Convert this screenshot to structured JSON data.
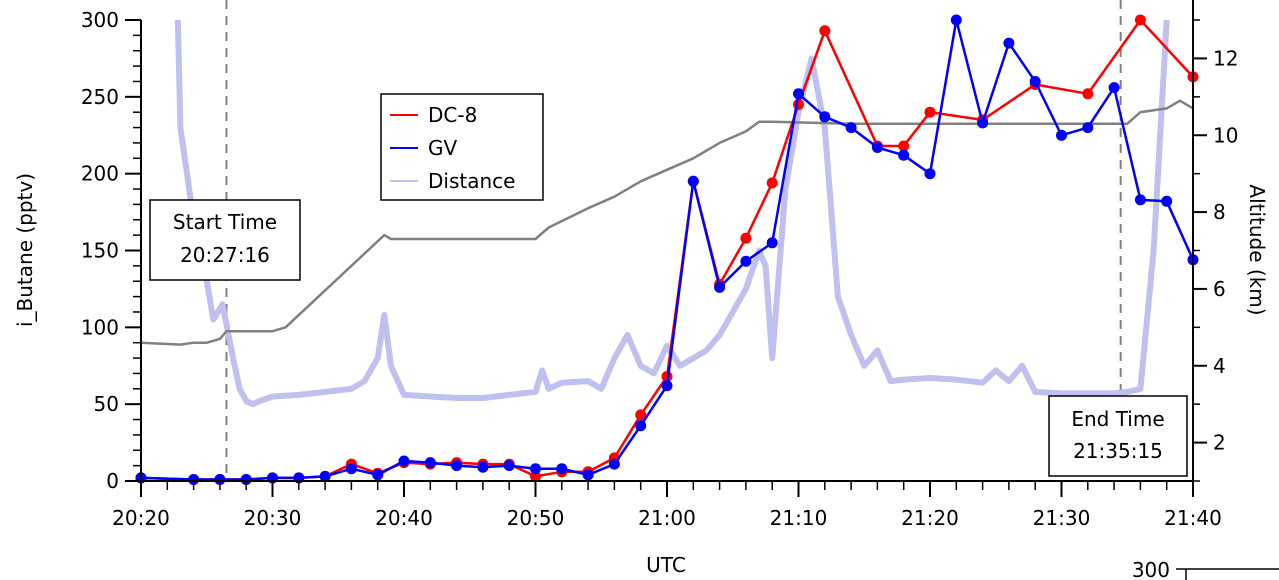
{
  "chart_data": {
    "type": "line",
    "title": "",
    "xlabel": "UTC",
    "ylabel": "i_Butane (pptv)",
    "y2label": "Altitude (km)",
    "x_ticks": [
      "20:20",
      "20:30",
      "20:40",
      "20:50",
      "21:00",
      "21:10",
      "21:20",
      "21:30",
      "21:40"
    ],
    "xlim": [
      "20:20",
      "21:40"
    ],
    "ylim": [
      0,
      300
    ],
    "y_ticks": [
      0,
      50,
      100,
      150,
      200,
      250,
      300
    ],
    "y2lim": [
      1,
      13
    ],
    "y2_ticks": [
      2,
      4,
      6,
      8,
      10,
      12
    ],
    "legend": {
      "placement": "upper-left-inside",
      "entries": [
        "DC-8",
        "GV",
        "Distance"
      ]
    },
    "colors": {
      "DC-8": "#ff0000",
      "GV": "#0000ff",
      "Distance": "#c0c0f0",
      "Altitude": "#808080",
      "marker_lines": "#808080"
    },
    "series": [
      {
        "name": "DC-8",
        "axis": "left",
        "x": [
          "20:20",
          "20:24",
          "20:26",
          "20:28",
          "20:30",
          "20:32",
          "20:34",
          "20:36",
          "20:38",
          "20:40",
          "20:42",
          "20:44",
          "20:46",
          "20:48",
          "20:50",
          "20:52",
          "20:54",
          "20:56",
          "20:58",
          "21:00",
          "21:02",
          "21:04",
          "21:06",
          "21:08",
          "21:10",
          "21:12",
          "21:16",
          "21:18",
          "21:20",
          "21:24",
          "21:28",
          "21:32",
          "21:36",
          "21:40"
        ],
        "y": [
          2,
          1,
          1,
          1,
          2,
          2,
          3,
          11,
          5,
          12,
          11,
          12,
          11,
          11,
          3,
          6,
          6,
          15,
          43,
          68,
          195,
          128,
          158,
          194,
          245,
          293,
          218,
          218,
          240,
          235,
          258,
          252,
          300,
          263
        ]
      },
      {
        "name": "GV",
        "axis": "left",
        "x": [
          "20:20",
          "20:24",
          "20:26",
          "20:28",
          "20:30",
          "20:32",
          "20:34",
          "20:36",
          "20:38",
          "20:40",
          "20:42",
          "20:44",
          "20:46",
          "20:48",
          "20:50",
          "20:52",
          "20:54",
          "20:56",
          "20:58",
          "21:00",
          "21:02",
          "21:04",
          "21:06",
          "21:08",
          "21:10",
          "21:12",
          "21:14",
          "21:16",
          "21:18",
          "21:20",
          "21:22",
          "21:24",
          "21:26",
          "21:28",
          "21:30",
          "21:32",
          "21:34",
          "21:36",
          "21:38",
          "21:40"
        ],
        "y": [
          2,
          1,
          1,
          1,
          2,
          2,
          3,
          8,
          4,
          13,
          12,
          10,
          9,
          10,
          8,
          8,
          4,
          11,
          36,
          62,
          195,
          126,
          143,
          155,
          252,
          237,
          230,
          217,
          212,
          200,
          300,
          233,
          285,
          260,
          225,
          230,
          256,
          183,
          182,
          144
        ]
      },
      {
        "name": "Distance",
        "axis": "left",
        "x": [
          "20:22.8",
          "20:23",
          "20:24",
          "20:25",
          "20:25.5",
          "20:26.2",
          "20:27",
          "20:27.5",
          "20:28",
          "20:28.5",
          "20:29",
          "20:30",
          "20:32",
          "20:34",
          "20:36",
          "20:37",
          "20:38",
          "20:38.5",
          "20:39",
          "20:40",
          "20:42",
          "20:44",
          "20:46",
          "20:48",
          "20:50",
          "20:50.5",
          "20:51",
          "20:52",
          "20:54",
          "20:55",
          "20:56",
          "20:57",
          "20:58",
          "20:59",
          "21:00",
          "21:01",
          "21:02",
          "21:03",
          "21:04",
          "21:05",
          "21:06",
          "21:07",
          "21:07.5",
          "21:08",
          "21:09",
          "21:10",
          "21:11",
          "21:12",
          "21:13",
          "21:14",
          "21:15",
          "21:16",
          "21:17",
          "21:18",
          "21:20",
          "21:22",
          "21:24",
          "21:25",
          "21:26",
          "21:27",
          "21:28",
          "21:30",
          "21:32",
          "21:34",
          "21:35",
          "21:36",
          "21:37",
          "21:38"
        ],
        "y": [
          300,
          230,
          170,
          130,
          105,
          115,
          80,
          60,
          52,
          50,
          52,
          55,
          56,
          58,
          60,
          65,
          80,
          108,
          75,
          56,
          55,
          54,
          54,
          56,
          58,
          72,
          60,
          64,
          65,
          60,
          80,
          95,
          75,
          70,
          88,
          75,
          80,
          85,
          95,
          110,
          125,
          150,
          140,
          80,
          190,
          240,
          275,
          230,
          120,
          95,
          75,
          85,
          65,
          66,
          67,
          66,
          64,
          72,
          65,
          75,
          58,
          57,
          57,
          57,
          58,
          60,
          150,
          300
        ]
      },
      {
        "name": "Altitude",
        "axis": "right",
        "x": [
          "20:20",
          "20:23",
          "20:24",
          "20:25",
          "20:26",
          "20:26.5",
          "20:30",
          "20:31",
          "20:38.5",
          "20:39",
          "20:45",
          "20:50",
          "20:51",
          "20:54",
          "20:56",
          "20:58",
          "21:00",
          "21:02",
          "21:04",
          "21:06",
          "21:07",
          "21:08",
          "21:14",
          "21:20",
          "21:30",
          "21:34",
          "21:35",
          "21:36",
          "21:38",
          "21:39",
          "21:40"
        ],
        "y": [
          4.6,
          4.55,
          4.6,
          4.6,
          4.7,
          4.9,
          4.9,
          5.0,
          7.4,
          7.3,
          7.3,
          7.3,
          7.6,
          8.1,
          8.4,
          8.8,
          9.1,
          9.4,
          9.8,
          10.1,
          10.35,
          10.35,
          10.3,
          10.3,
          10.3,
          10.3,
          10.3,
          10.6,
          10.7,
          10.9,
          10.7
        ]
      }
    ],
    "annotations": [
      {
        "id": "start",
        "line1": "Start Time",
        "line2": "20:27:16",
        "x": "20:26.5"
      },
      {
        "id": "end",
        "line1": "End Time",
        "line2": "21:35:15",
        "x": "21:34.5"
      }
    ],
    "inset": {
      "label": "300"
    }
  }
}
